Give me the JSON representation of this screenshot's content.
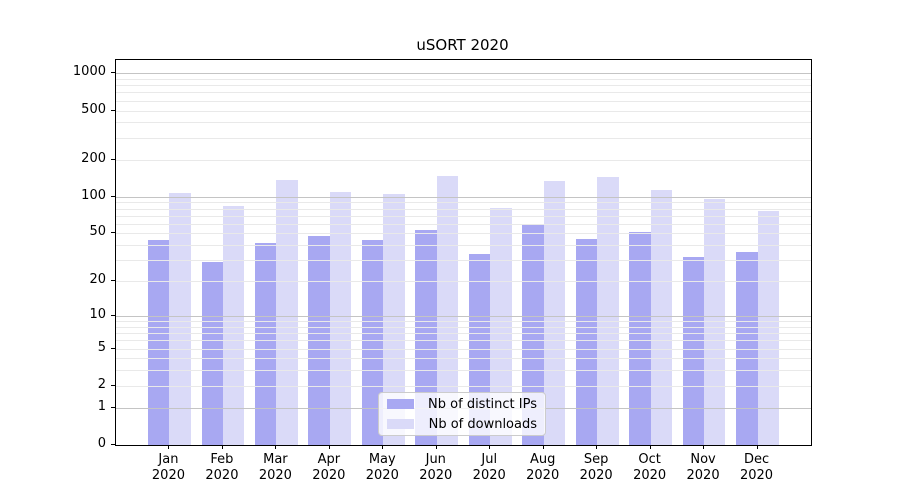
{
  "title": "uSORT 2020",
  "chart_data": {
    "type": "bar",
    "title": "uSORT 2020",
    "categories": [
      "Jan",
      "Feb",
      "Mar",
      "Apr",
      "May",
      "Jun",
      "Jul",
      "Aug",
      "Sep",
      "Oct",
      "Nov",
      "Dec"
    ],
    "x_year": "2020",
    "series": [
      {
        "name": "Nb of distinct IPs",
        "color": "#a8a8f2",
        "values": [
          44,
          29,
          42,
          48,
          44,
          53,
          34,
          60,
          45,
          51,
          32,
          35
        ]
      },
      {
        "name": "Nb of downloads",
        "color": "#dadaf8",
        "values": [
          107,
          84,
          138,
          110,
          105,
          148,
          81,
          133,
          146,
          113,
          96,
          77
        ]
      }
    ],
    "y_ticks": [
      0,
      1,
      2,
      5,
      10,
      20,
      50,
      100,
      200,
      500,
      1000
    ],
    "y_scale": "log1p",
    "ylim": [
      0,
      1280
    ],
    "grid": true,
    "grid_major_color": "#c4c4c4",
    "grid_minor_color": "#e9e9e9",
    "legend_position": "lower center"
  }
}
